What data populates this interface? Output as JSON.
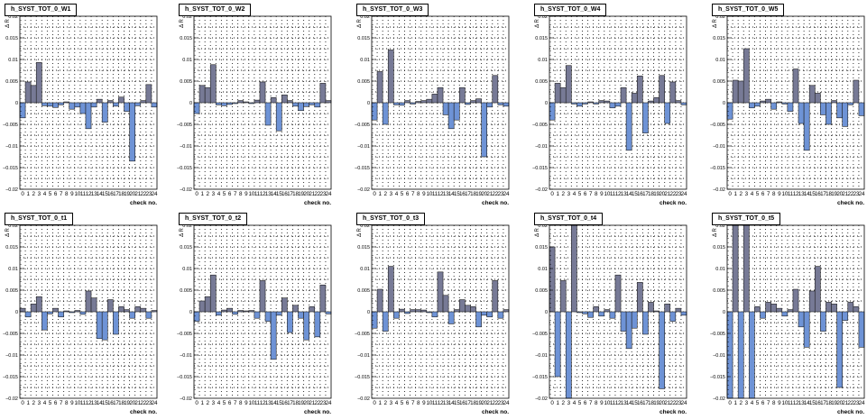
{
  "colors": {
    "up": "#777a96",
    "down": "#6e93d6",
    "outline": "#222222",
    "grid": "#000000"
  },
  "chart_data": [
    {
      "type": "bar",
      "title": "h_SYST_TOT_0_W1",
      "xlabel": "check no.",
      "ylabel": "Δ R",
      "ylim": [
        -0.02,
        0.02
      ],
      "categories": [
        "0",
        "1",
        "2",
        "3",
        "4",
        "5",
        "6",
        "7",
        "8",
        "9",
        "10",
        "11",
        "12",
        "13",
        "14",
        "15",
        "16",
        "17",
        "18",
        "19",
        "20",
        "21",
        "22",
        "23",
        "24"
      ],
      "values": [
        -0.0035,
        0.0048,
        0.004,
        0.0093,
        -0.0007,
        -0.0008,
        -0.0011,
        -0.0005,
        0.0002,
        -0.0015,
        -0.001,
        -0.0025,
        -0.006,
        -0.001,
        0.0008,
        -0.0045,
        0.0005,
        -0.0008,
        0.0013,
        -0.002,
        -0.0135,
        -0.0007,
        0.0005,
        0.0042,
        -0.001
      ],
      "categories_printed": "0 1 2 3 4 5 6 7 8 9101112131415161718192021222324"
    },
    {
      "type": "bar",
      "title": "h_SYST_TOT_0_W2",
      "xlabel": "check no.",
      "ylabel": "Δ R",
      "ylim": [
        -0.02,
        0.02
      ],
      "categories": [
        "0",
        "1",
        "2",
        "3",
        "4",
        "5",
        "6",
        "7",
        "8",
        "9",
        "10",
        "11",
        "12",
        "13",
        "14",
        "15",
        "16",
        "17",
        "18",
        "19",
        "20",
        "21",
        "22",
        "23",
        "24"
      ],
      "values": [
        -0.0025,
        0.004,
        0.0035,
        0.0088,
        -0.0005,
        -0.0007,
        -0.0004,
        -0.0002,
        0.0005,
        0.0002,
        -0.0002,
        0.0006,
        0.0048,
        -0.0052,
        0.0012,
        -0.0065,
        0.0018,
        0.0005,
        -0.0008,
        -0.0018,
        -0.0009,
        -0.0005,
        -0.001,
        0.0045,
        0.0005
      ],
      "categories_printed": "0 1 2 3 4 5 6 7 8 9101112131415161718192021222324"
    },
    {
      "type": "bar",
      "title": "h_SYST_TOT_0_W3",
      "xlabel": "check no.",
      "ylabel": "Δ R",
      "ylim": [
        -0.02,
        0.02
      ],
      "categories": [
        "0",
        "1",
        "2",
        "3",
        "4",
        "5",
        "6",
        "7",
        "8",
        "9",
        "10",
        "11",
        "12",
        "13",
        "14",
        "15",
        "16",
        "17",
        "18",
        "19",
        "20",
        "21",
        "22",
        "23",
        "24"
      ],
      "values": [
        -0.004,
        0.0072,
        -0.005,
        0.0122,
        -0.0005,
        -0.0006,
        0.0005,
        -0.0003,
        0.0003,
        0.0005,
        0.0008,
        0.002,
        0.0035,
        -0.0028,
        -0.006,
        -0.004,
        0.0035,
        -0.0004,
        0.0005,
        0.0009,
        -0.0125,
        -0.001,
        0.0063,
        -0.0005,
        -0.0008
      ],
      "categories_printed": "0 1 2 3 4 5 6 7 8 9101112131415161718192021222324"
    },
    {
      "type": "bar",
      "title": "h_SYST_TOT_0_W4",
      "xlabel": "check no.",
      "ylabel": "Δ R",
      "ylim": [
        -0.02,
        0.02
      ],
      "categories": [
        "0",
        "1",
        "2",
        "3",
        "4",
        "5",
        "6",
        "7",
        "8",
        "9",
        "10",
        "11",
        "12",
        "13",
        "14",
        "15",
        "16",
        "17",
        "18",
        "19",
        "20",
        "21",
        "22",
        "23",
        "24"
      ],
      "values": [
        -0.004,
        0.0045,
        0.0035,
        0.0086,
        -0.0003,
        -0.0008,
        -0.0003,
        0.0002,
        -0.0003,
        0.0005,
        0.0004,
        -0.0012,
        -0.0008,
        0.0035,
        -0.011,
        0.0022,
        0.0062,
        -0.007,
        0.0004,
        0.0012,
        0.0063,
        -0.0048,
        0.0048,
        0.0005,
        -0.0005
      ],
      "categories_printed": "0 1 2 3 4 5 6 7 8 9101112131415161718192021222324"
    },
    {
      "type": "bar",
      "title": "h_SYST_TOT_0_W5",
      "xlabel": "check no.",
      "ylabel": "Δ R",
      "ylim": [
        -0.02,
        0.02
      ],
      "categories": [
        "0",
        "1",
        "2",
        "3",
        "4",
        "5",
        "6",
        "7",
        "8",
        "9",
        "10",
        "11",
        "12",
        "13",
        "14",
        "15",
        "16",
        "17",
        "18",
        "19",
        "20",
        "21",
        "22",
        "23",
        "24"
      ],
      "values": [
        -0.0038,
        0.0052,
        0.005,
        0.0125,
        -0.0012,
        -0.0008,
        0.0004,
        0.0008,
        -0.0015,
        0.0002,
        -0.0003,
        -0.002,
        0.0078,
        -0.0048,
        -0.011,
        0.004,
        0.0022,
        -0.0028,
        -0.005,
        0.0005,
        -0.0035,
        -0.0055,
        -0.0005,
        0.0052,
        -0.003
      ],
      "categories_printed": "0 1 2 3 4 5 6 7 8 9101112131415161718192021222324"
    },
    {
      "type": "bar",
      "title": "h_SYST_TOT_0_t1",
      "xlabel": "check no.",
      "ylabel": "Δ R",
      "ylim": [
        -0.02,
        0.02
      ],
      "categories": [
        "0",
        "1",
        "2",
        "3",
        "4",
        "5",
        "6",
        "7",
        "8",
        "9",
        "10",
        "11",
        "12",
        "13",
        "14",
        "15",
        "16",
        "17",
        "18",
        "19",
        "20",
        "21",
        "22",
        "23",
        "24"
      ],
      "values": [
        0.0008,
        -0.0012,
        0.0018,
        0.0035,
        -0.0042,
        -0.0005,
        0.0008,
        -0.0012,
        0.0002,
        -0.0002,
        0.0003,
        -0.0006,
        0.0048,
        0.0032,
        -0.0062,
        -0.0065,
        0.0028,
        -0.0052,
        0.0012,
        0.0005,
        -0.0015,
        0.0012,
        0.0008,
        -0.0015,
        0.0003
      ],
      "categories_printed": "0 1 2 3 4 5 6 7 8 9101112131415161718192021222324"
    },
    {
      "type": "bar",
      "title": "h_SYST_TOT_0_t2",
      "xlabel": "check no.",
      "ylabel": "Δ R",
      "ylim": [
        -0.02,
        0.02
      ],
      "categories": [
        "0",
        "1",
        "2",
        "3",
        "4",
        "5",
        "6",
        "7",
        "8",
        "9",
        "10",
        "11",
        "12",
        "13",
        "14",
        "15",
        "16",
        "17",
        "18",
        "19",
        "20",
        "21",
        "22",
        "23",
        "24"
      ],
      "values": [
        -0.0022,
        0.0025,
        0.0035,
        0.0085,
        -0.0008,
        0.0004,
        0.0008,
        -0.0006,
        0.0003,
        0.0002,
        0.0003,
        -0.0015,
        0.0072,
        -0.0022,
        -0.011,
        -0.0008,
        0.0032,
        -0.0048,
        0.0015,
        -0.0015,
        -0.0065,
        0.0012,
        -0.0058,
        0.0062,
        -0.0005
      ],
      "categories_printed": "0 1 2 3 4 5 6 7 8 9101112131415161718192021222324"
    },
    {
      "type": "bar",
      "title": "h_SYST_TOT_0_t3",
      "xlabel": "check no.",
      "ylabel": "Δ R",
      "ylim": [
        -0.02,
        0.02
      ],
      "categories": [
        "0",
        "1",
        "2",
        "3",
        "4",
        "5",
        "6",
        "7",
        "8",
        "9",
        "10",
        "11",
        "12",
        "13",
        "14",
        "15",
        "16",
        "17",
        "18",
        "19",
        "20",
        "21",
        "22",
        "23",
        "24"
      ],
      "values": [
        -0.0038,
        0.0052,
        -0.0045,
        0.0105,
        -0.0015,
        0.0006,
        -0.0004,
        0.0005,
        0.0005,
        0.0004,
        -0.0002,
        -0.0012,
        0.0092,
        0.0038,
        -0.0028,
        0.0005,
        0.0028,
        0.0015,
        0.0012,
        -0.0035,
        -0.0008,
        -0.0012,
        0.0072,
        -0.0015,
        0.0005
      ],
      "categories_printed": "0 1 2 3 4 5 6 7 8 9101112131415161718192021222324"
    },
    {
      "type": "bar",
      "title": "h_SYST_TOT_0_t4",
      "xlabel": "check no.",
      "ylabel": "Δ R",
      "ylim": [
        -0.02,
        0.02
      ],
      "categories": [
        "0",
        "1",
        "2",
        "3",
        "4",
        "5",
        "6",
        "7",
        "8",
        "9",
        "10",
        "11",
        "12",
        "13",
        "14",
        "15",
        "16",
        "17",
        "18",
        "19",
        "20",
        "21",
        "22",
        "23",
        "24"
      ],
      "values": [
        0.015,
        -0.015,
        0.0072,
        -0.02,
        0.02,
        -0.0002,
        -0.0005,
        -0.0013,
        0.0012,
        -0.001,
        0.0005,
        -0.0015,
        0.0085,
        -0.0045,
        -0.0085,
        -0.0038,
        0.0068,
        -0.0052,
        0.0022,
        0.0002,
        -0.0178,
        0.0018,
        -0.0022,
        0.0008,
        -0.0008
      ],
      "categories_printed": "0 1 2 3 4 5 6 7 8 9101112131415161718192021222324"
    },
    {
      "type": "bar",
      "title": "h_SYST_TOT_0_t5",
      "xlabel": "check no.",
      "ylabel": "Δ R",
      "ylim": [
        -0.02,
        0.02
      ],
      "categories": [
        "0",
        "1",
        "2",
        "3",
        "4",
        "5",
        "6",
        "7",
        "8",
        "9",
        "10",
        "11",
        "12",
        "13",
        "14",
        "15",
        "16",
        "17",
        "18",
        "19",
        "20",
        "21",
        "22",
        "23",
        "24"
      ],
      "values": [
        -0.02,
        0.02,
        -0.02,
        0.02,
        -0.02,
        0.0012,
        -0.0015,
        0.0022,
        0.0018,
        0.0008,
        -0.001,
        0.0005,
        0.0052,
        -0.0035,
        -0.0082,
        0.0048,
        0.0105,
        -0.0045,
        0.0022,
        0.0018,
        -0.0175,
        -0.002,
        0.0022,
        0.0012,
        -0.0082
      ],
      "categories_printed": "0 1 2 3 4 5 6 7 8 9101112131415161718192021222324"
    }
  ],
  "yticks": [
    "0.02",
    "0.015",
    "0.01",
    "0.005",
    "0",
    "0.005",
    "0.01",
    "0.015",
    "0.02"
  ],
  "ytick_values": [
    0.02,
    0.015,
    0.01,
    0.005,
    0,
    -0.005,
    -0.01,
    -0.015,
    -0.02
  ],
  "ytick_labels_printed": [
    "0.02",
    "0.015",
    "0.01",
    "0.005",
    "0",
    "−0.005",
    "−0.01",
    "−0.015",
    "−0.02"
  ]
}
